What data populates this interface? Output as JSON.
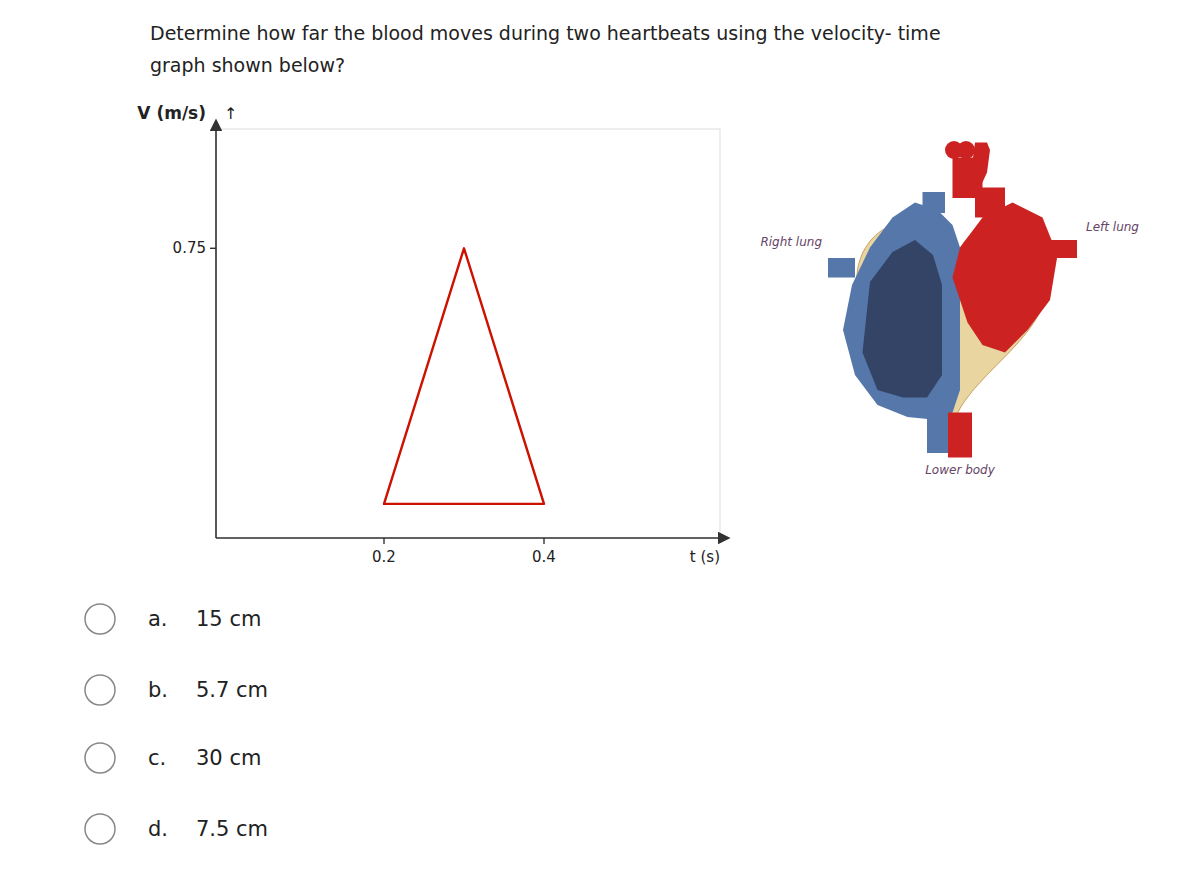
{
  "chart_data": {
    "type": "line",
    "title": "Determine how far the blood moves during two heartbeats using the velocity- time",
    "subtitle": "graph shown below?",
    "xlabel": "t (s)",
    "ylabel": "V (m/s)",
    "x": [
      0.2,
      0.3,
      0.4,
      0.2
    ],
    "values": [
      0.0,
      0.75,
      0.0,
      0.0
    ],
    "color": "#cc1100",
    "xlim": [
      -0.01,
      0.62
    ],
    "xticks": [
      0.2,
      0.4
    ],
    "ylim": [
      -0.1,
      1.1
    ],
    "yticks": [
      0.75
    ],
    "grid": false,
    "annotations": [
      {
        "text": "↑"
      },
      {
        "text": "Right lung"
      },
      {
        "text": "Left lung"
      },
      {
        "text": "Lower body"
      },
      {
        "label": "a.",
        "text": "15 cm"
      },
      {
        "label": "b.",
        "text": "5.7 cm"
      },
      {
        "label": "c.",
        "text": "30 cm"
      },
      {
        "label": "d.",
        "text": "7.5 cm"
      }
    ]
  }
}
